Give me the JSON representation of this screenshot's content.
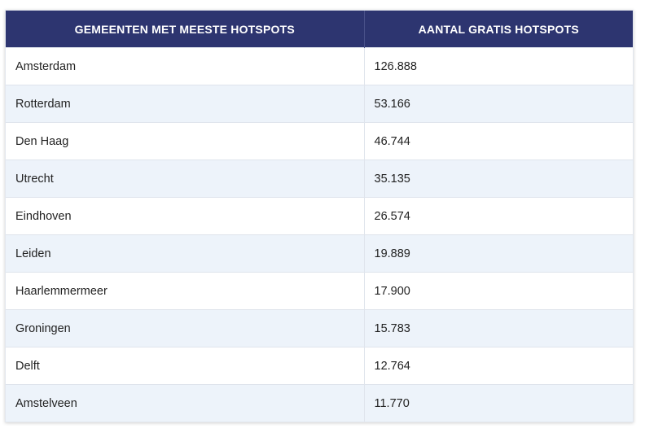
{
  "table": {
    "headers": [
      "GEMEENTEN MET MEESTE HOTSPOTS",
      "AANTAL GRATIS HOTSPOTS"
    ],
    "rows": [
      [
        "Amsterdam",
        "126.888"
      ],
      [
        "Rotterdam",
        "53.166"
      ],
      [
        "Den Haag",
        "46.744"
      ],
      [
        "Utrecht",
        "35.135"
      ],
      [
        "Eindhoven",
        "26.574"
      ],
      [
        "Leiden",
        "19.889"
      ],
      [
        "Haarlemmermeer",
        "17.900"
      ],
      [
        "Groningen",
        "15.783"
      ],
      [
        "Delft",
        "12.764"
      ],
      [
        "Amstelveen",
        "11.770"
      ]
    ]
  },
  "colors": {
    "header_bg": "#2d3570",
    "header_text": "#ffffff",
    "row_alt_bg": "#edf3fa"
  }
}
